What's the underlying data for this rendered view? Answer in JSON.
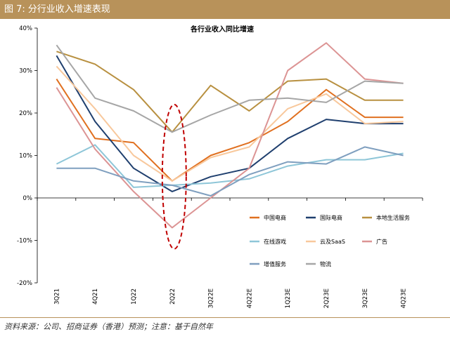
{
  "header": {
    "figure_label": "图 7:",
    "figure_title": "分行业收入增速表现"
  },
  "chart_data": {
    "type": "line",
    "title": "各行业收入同比增速",
    "xlabel": "",
    "ylabel": "",
    "ylim": [
      -20,
      40
    ],
    "y_ticks": [
      "40%",
      "30%",
      "20%",
      "10%",
      "0%",
      "-10%",
      "-20%"
    ],
    "y_tick_values": [
      40,
      30,
      20,
      10,
      0,
      -10,
      -20
    ],
    "categories": [
      "3Q21",
      "4Q21",
      "1Q22",
      "2Q22",
      "3Q22E",
      "4Q22E",
      "1Q23E",
      "2Q23E",
      "3Q23E",
      "4Q23E"
    ],
    "highlight": {
      "category": "2Q22",
      "style": "dashed-ellipse"
    },
    "legend_position": "lower-right",
    "series": [
      {
        "name": "中国电商",
        "color": "#e07020",
        "values": [
          28,
          14,
          13,
          4,
          10,
          13,
          18,
          25.5,
          19,
          19
        ]
      },
      {
        "name": "国际电商",
        "color": "#1f3f6e",
        "values": [
          33.5,
          18,
          7,
          1.5,
          5,
          7,
          14,
          18.5,
          17.5,
          17.5
        ]
      },
      {
        "name": "本地生活服务",
        "color": "#b89040",
        "values": [
          34.5,
          31.5,
          25.5,
          15.5,
          26.5,
          20.5,
          27.5,
          28,
          23,
          23
        ]
      },
      {
        "name": "在线游戏",
        "color": "#8ec6d8",
        "values": [
          8,
          12.5,
          2.5,
          3,
          3.5,
          4.5,
          7.5,
          9,
          9,
          10.5
        ]
      },
      {
        "name": "云及SaaS",
        "color": "#f8c89c",
        "values": [
          31,
          21,
          10,
          4,
          9.5,
          12,
          21,
          24.5,
          17.5,
          18
        ]
      },
      {
        "name": "广告",
        "color": "#dc9494",
        "values": [
          26,
          11.5,
          1.5,
          -7,
          0,
          7,
          30,
          36.5,
          28,
          27
        ]
      },
      {
        "name": "增值服务",
        "color": "#7f9fbf",
        "values": [
          7,
          7,
          4,
          3,
          0.5,
          5.5,
          8.5,
          8,
          12,
          10
        ]
      },
      {
        "name": "物流",
        "color": "#a6a6a6",
        "values": [
          36,
          23.5,
          20.5,
          15.5,
          19.5,
          23,
          23.5,
          22.5,
          27.5,
          27
        ]
      }
    ]
  },
  "footer": {
    "source": "资料来源：公司、招商证券（香港）预测；注意：基于自然年"
  }
}
